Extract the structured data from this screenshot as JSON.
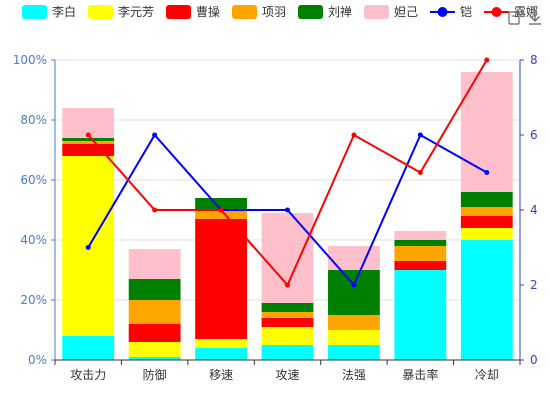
{
  "chart_data": {
    "type": "bar",
    "stacked": true,
    "categories": [
      "攻击力",
      "防御",
      "移速",
      "攻速",
      "法强",
      "暴击率",
      "冷却"
    ],
    "left_axis": {
      "min": 0,
      "max": 100,
      "step": 20,
      "unit": "%",
      "color": "#4a7bd0"
    },
    "right_axis": {
      "min": 0,
      "max": 8,
      "step": 2,
      "color": "#3a3fbf"
    },
    "grid": true,
    "legend_position": "top",
    "series": [
      {
        "name": "李白",
        "type": "bar",
        "color": "#00ffff",
        "values": [
          8,
          1,
          4,
          5,
          5,
          30,
          40
        ]
      },
      {
        "name": "李元芳",
        "type": "bar",
        "color": "#ffff00",
        "values": [
          60,
          5,
          3,
          6,
          5,
          0,
          4
        ]
      },
      {
        "name": "曹操",
        "type": "bar",
        "color": "#ff0000",
        "values": [
          4,
          6,
          40,
          3,
          0,
          3,
          4
        ]
      },
      {
        "name": "项羽",
        "type": "bar",
        "color": "#ffa500",
        "values": [
          1,
          8,
          3,
          2,
          5,
          5,
          3
        ]
      },
      {
        "name": "刘禅",
        "type": "bar",
        "color": "#008000",
        "values": [
          1,
          7,
          4,
          3,
          15,
          2,
          5
        ]
      },
      {
        "name": "妲己",
        "type": "bar",
        "color": "#ffc0cb",
        "values": [
          10,
          10,
          0,
          30,
          8,
          3,
          40
        ]
      },
      {
        "name": "铠",
        "type": "line",
        "axis": "right",
        "color": "#0000ff",
        "values": [
          3,
          6,
          4,
          4,
          2,
          6,
          5
        ]
      },
      {
        "name": "露娜",
        "type": "line",
        "axis": "right",
        "color": "#ff0000",
        "values": [
          6,
          4,
          4,
          2,
          6,
          5,
          8
        ]
      }
    ]
  },
  "toolbox": {
    "restore_icon": "restore-icon",
    "download_icon": "download-icon"
  }
}
